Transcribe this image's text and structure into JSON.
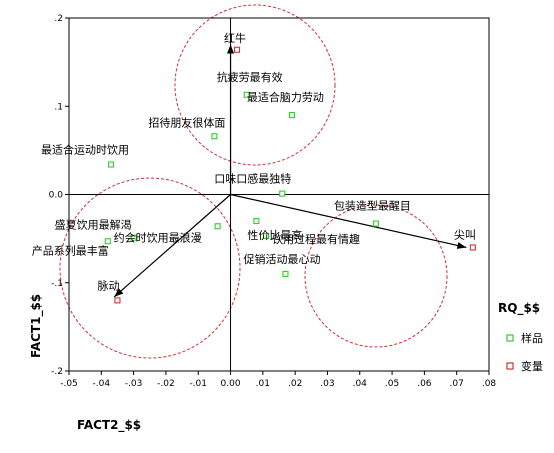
{
  "chart_data": {
    "type": "scatter",
    "xlabel": "FACT2_$$",
    "ylabel": "FACT1_$$",
    "xlim": [
      -0.05,
      0.08
    ],
    "ylim": [
      -0.2,
      0.2
    ],
    "xticks": [
      -0.05,
      -0.04,
      -0.03,
      -0.02,
      -0.01,
      0.0,
      0.01,
      0.02,
      0.03,
      0.04,
      0.05,
      0.06,
      0.07,
      0.08
    ],
    "xtick_labels": [
      "-.05",
      "-.04",
      "-.03",
      "-.02",
      "-.01",
      "0.00",
      ".01",
      ".02",
      ".03",
      ".04",
      ".05",
      ".06",
      ".07",
      ".08"
    ],
    "yticks": [
      -0.2,
      -0.1,
      0.0,
      0.1,
      0.2
    ],
    "ytick_labels": [
      "-.2",
      "-.1",
      "0.0",
      ".1",
      ".2"
    ],
    "grid": false,
    "reference_lines": {
      "x": 0.0,
      "y": 0.0
    },
    "legend": {
      "title": "RQ_$$",
      "position": "right",
      "entries": [
        {
          "label": "样品",
          "marker": "square",
          "color": "#33cc33"
        },
        {
          "label": "变量",
          "marker": "square",
          "color": "#cc3333"
        }
      ]
    },
    "series": [
      {
        "name": "样品",
        "color": "#33cc33",
        "points": [
          {
            "x": 0.005,
            "y": 0.113,
            "label": "抗疲劳最有效"
          },
          {
            "x": 0.019,
            "y": 0.09,
            "label": "最适合脑力劳动"
          },
          {
            "x": -0.005,
            "y": 0.066,
            "label": "招待朋友很体面"
          },
          {
            "x": -0.037,
            "y": 0.034,
            "label": "最适合运动时饮用"
          },
          {
            "x": 0.016,
            "y": 0.001,
            "label": "口味口感最独特"
          },
          {
            "x": -0.004,
            "y": -0.036,
            "label": "约会时饮用最浪漫"
          },
          {
            "x": 0.008,
            "y": -0.03,
            "label": "性价比最高"
          },
          {
            "x": 0.045,
            "y": -0.033,
            "label": "包装造型最醒目"
          },
          {
            "x": 0.011,
            "y": -0.047,
            "label": "饮用过程最有情趣"
          },
          {
            "x": -0.03,
            "y": -0.049,
            "label": "盛夏饮用最解渴"
          },
          {
            "x": -0.038,
            "y": -0.053,
            "label": "产品系列最丰富"
          },
          {
            "x": 0.017,
            "y": -0.09,
            "label": "促销活动最心动"
          }
        ]
      },
      {
        "name": "变量",
        "color": "#cc3333",
        "points": [
          {
            "x": 0.002,
            "y": 0.164,
            "label": "红牛"
          },
          {
            "x": 0.075,
            "y": -0.06,
            "label": "尖叫"
          },
          {
            "x": -0.035,
            "y": -0.12,
            "label": "脉动"
          }
        ]
      }
    ],
    "vectors": [
      {
        "from": [
          0.0,
          0.0
        ],
        "to": [
          0.0,
          0.17
        ],
        "target": "红牛"
      },
      {
        "from": [
          0.0,
          0.0
        ],
        "to": [
          0.073,
          -0.06
        ],
        "target": "尖叫"
      },
      {
        "from": [
          0.0,
          0.0
        ],
        "to": [
          -0.036,
          -0.116
        ],
        "target": "脉动"
      }
    ],
    "annotations": [
      {
        "type": "dashed-circle",
        "group": "红牛"
      },
      {
        "type": "dashed-circle",
        "group": "尖叫"
      },
      {
        "type": "dashed-circle",
        "group": "脉动"
      }
    ]
  }
}
